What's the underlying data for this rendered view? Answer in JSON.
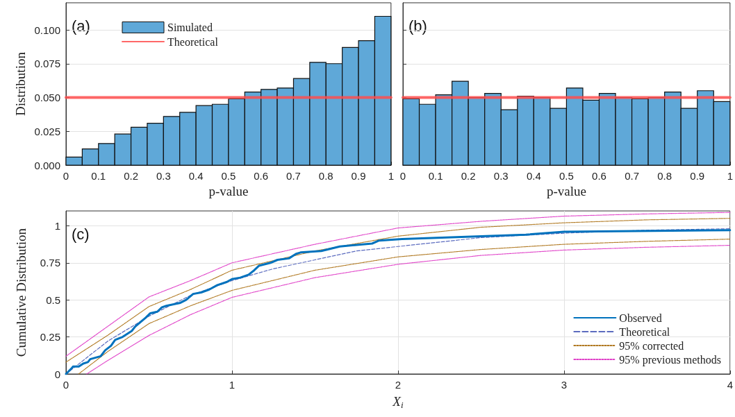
{
  "chart_data": [
    {
      "type": "histogram",
      "xlabel": "p-value",
      "ylabel": "Distribution",
      "annotations": [
        "(a)"
      ],
      "bins": [
        0,
        0.05,
        0.1,
        0.15,
        0.2,
        0.25,
        0.3,
        0.35,
        0.4,
        0.45,
        0.5,
        0.55,
        0.6,
        0.65,
        0.7,
        0.75,
        0.8,
        0.85,
        0.9,
        0.95,
        1
      ],
      "series": [
        {
          "name": "Simulated",
          "color": "#5fa8d8",
          "values": [
            0.006,
            0.012,
            0.016,
            0.023,
            0.028,
            0.031,
            0.036,
            0.039,
            0.044,
            0.045,
            0.049,
            0.054,
            0.056,
            0.057,
            0.064,
            0.076,
            0.075,
            0.087,
            0.092,
            0.11
          ]
        },
        {
          "name": "Theoretical",
          "type": "line",
          "color": "#ff4d4d",
          "x": [
            0,
            1
          ],
          "values": [
            0.05,
            0.05
          ]
        }
      ],
      "xlim": [
        0,
        1
      ],
      "xticks": [
        0,
        0.1,
        0.2,
        0.3,
        0.4,
        0.5,
        0.6,
        0.7,
        0.8,
        0.9,
        1
      ],
      "ylim": [
        0,
        0.12
      ],
      "yticks": [
        {
          "value": 0,
          "label": "0.000"
        },
        {
          "value": 0.025,
          "label": "0.025"
        },
        {
          "value": 0.05,
          "label": "0.050"
        },
        {
          "value": 0.075,
          "label": "0.075"
        },
        {
          "value": 0.1,
          "label": "0.100"
        }
      ],
      "grid": "y",
      "legend": "top left",
      "marker": "none",
      "line_style": "solid"
    },
    {
      "type": "histogram",
      "xlabel": "p-value",
      "annotations": [
        "(b)"
      ],
      "bins": [
        0,
        0.05,
        0.1,
        0.15,
        0.2,
        0.25,
        0.3,
        0.35,
        0.4,
        0.45,
        0.5,
        0.55,
        0.6,
        0.65,
        0.7,
        0.75,
        0.8,
        0.85,
        0.9,
        0.95,
        1
      ],
      "series": [
        {
          "color": "#5fa8d8",
          "values": [
            0.049,
            0.045,
            0.052,
            0.062,
            0.05,
            0.053,
            0.041,
            0.051,
            0.05,
            0.042,
            0.057,
            0.048,
            0.053,
            0.05,
            0.049,
            0.05,
            0.054,
            0.042,
            0.055,
            0.047
          ]
        },
        {
          "type": "line",
          "color": "#ff4d4d",
          "x": [
            0,
            1
          ],
          "values": [
            0.05,
            0.05
          ]
        }
      ],
      "xlim": [
        0,
        1
      ],
      "xticks": [
        0,
        0.1,
        0.2,
        0.3,
        0.4,
        0.5,
        0.6,
        0.7,
        0.8,
        0.9,
        1
      ],
      "ylim": [
        0,
        0.12
      ],
      "yticks": [
        {
          "value": 0,
          "label": null
        },
        {
          "value": 0.025,
          "label": null
        },
        {
          "value": 0.05,
          "label": null
        },
        {
          "value": 0.075,
          "label": null
        },
        {
          "value": 0.1,
          "label": null
        }
      ],
      "tick_labels": "x",
      "grid": "y",
      "legend": false,
      "marker": "none",
      "line_style": "solid"
    },
    {
      "type": "line",
      "xlabel": "X$_{i}$",
      "ylabel": "Cumulative Distribution",
      "annotations": [
        "(c)"
      ],
      "series": [
        {
          "name": "Observed",
          "color": "#0072bd",
          "line_style": "solid",
          "x": [
            0,
            0.035,
            0.042,
            0.077,
            0.104,
            0.132,
            0.146,
            0.209,
            0.236,
            0.271,
            0.296,
            0.341,
            0.396,
            0.417,
            0.48,
            0.508,
            0.55,
            0.578,
            0.605,
            0.689,
            0.724,
            0.766,
            0.814,
            0.863,
            0.912,
            0.967,
            1.0,
            1.05,
            1.1,
            1.134,
            1.162,
            1.232,
            1.274,
            1.343,
            1.385,
            1.413,
            1.538,
            1.649,
            1.844,
            1.886,
            2.025,
            2.77,
            3.0,
            4.0
          ],
          "values": [
            0,
            0.04,
            0.05,
            0.05,
            0.07,
            0.08,
            0.1,
            0.12,
            0.16,
            0.19,
            0.23,
            0.25,
            0.29,
            0.32,
            0.38,
            0.41,
            0.42,
            0.45,
            0.46,
            0.48,
            0.5,
            0.54,
            0.55,
            0.57,
            0.6,
            0.62,
            0.64,
            0.65,
            0.67,
            0.7,
            0.73,
            0.75,
            0.77,
            0.78,
            0.81,
            0.82,
            0.83,
            0.86,
            0.88,
            0.9,
            0.91,
            0.94,
            0.96,
            0.97
          ]
        },
        {
          "name": "Theoretical",
          "color": "#5b6bbf",
          "line_style": "dashed",
          "x": [
            0,
            0.25,
            0.5,
            0.75,
            1,
            1.25,
            1.5,
            1.75,
            2,
            2.5,
            3,
            3.5,
            4
          ],
          "values": [
            0,
            0.22,
            0.39,
            0.53,
            0.63,
            0.71,
            0.77,
            0.83,
            0.86,
            0.92,
            0.95,
            0.97,
            0.98
          ]
        },
        {
          "name": "95% corrected",
          "color": "#b07820",
          "line_style": "dotted",
          "x": [
            0,
            0.25,
            0.5,
            0.75,
            1,
            1.5,
            2,
            2.5,
            3,
            3.5,
            4
          ],
          "values": [
            0.08,
            0.26,
            0.455,
            0.57,
            0.7,
            0.83,
            0.93,
            0.99,
            1.02,
            1.04,
            1.05
          ]
        },
        {
          "color": "#b07820",
          "line_style": "dotted",
          "x": [
            0.076,
            0.25,
            0.5,
            0.75,
            1,
            1.5,
            2,
            2.5,
            3,
            3.5,
            4
          ],
          "values": [
            0,
            0.15,
            0.34,
            0.46,
            0.564,
            0.7,
            0.79,
            0.84,
            0.875,
            0.895,
            0.91
          ]
        },
        {
          "name": "95% previous methods",
          "color": "#e040c8",
          "line_style": "dotted",
          "x": [
            0,
            0.25,
            0.5,
            0.75,
            1,
            1.5,
            2,
            2.5,
            3,
            3.5,
            4
          ],
          "values": [
            0.12,
            0.32,
            0.52,
            0.63,
            0.75,
            0.875,
            0.985,
            1.03,
            1.065,
            1.08,
            1.09
          ]
        },
        {
          "color": "#e040c8",
          "line_style": "dotted",
          "x": [
            0.125,
            0.25,
            0.5,
            0.75,
            1,
            1.5,
            2,
            2.5,
            3,
            3.5,
            4
          ],
          "values": [
            0,
            0.09,
            0.26,
            0.4,
            0.517,
            0.65,
            0.74,
            0.8,
            0.836,
            0.855,
            0.868
          ]
        }
      ],
      "xlim": [
        0,
        4
      ],
      "xticks": [
        0,
        1,
        2,
        3,
        4
      ],
      "ylim": [
        0,
        1.1
      ],
      "yticks": [
        0,
        0.25,
        0.5,
        0.75,
        1
      ],
      "grid": true,
      "legend": "bottom right",
      "marker": "none"
    }
  ]
}
